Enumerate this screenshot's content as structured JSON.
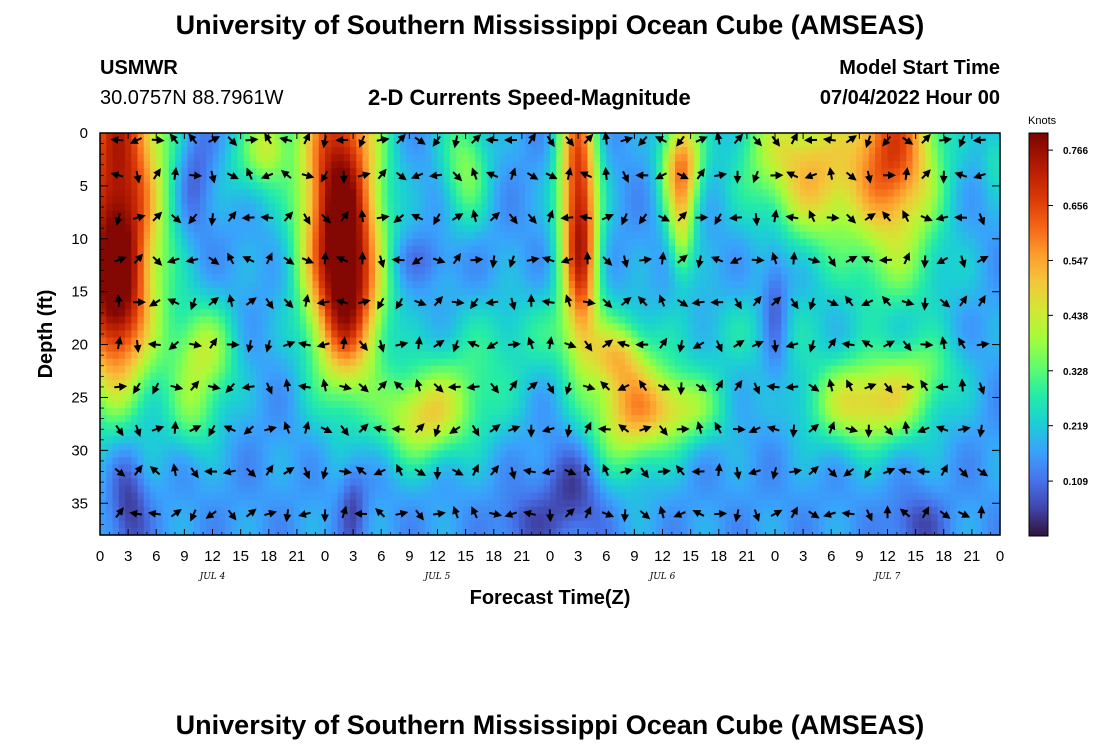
{
  "header": {
    "title": "University of Southern Mississippi Ocean Cube (AMSEAS)",
    "station": "USMWR",
    "location": "30.0757N  88.7961W",
    "subtitle": "2-D Currents Speed-Magnitude",
    "model_start_label": "Model Start Time",
    "model_start_value": "07/04/2022 Hour 00"
  },
  "footer": {
    "title": "University of Southern Mississippi Ocean Cube (AMSEAS)"
  },
  "chart_data": {
    "type": "heatmap",
    "title": "2-D Currents Speed-Magnitude",
    "xlabel": "Forecast Time(Z)",
    "ylabel": "Depth (ft)",
    "x_ticks": [
      "0",
      "3",
      "6",
      "9",
      "12",
      "15",
      "18",
      "21",
      "0",
      "3",
      "6",
      "9",
      "12",
      "15",
      "18",
      "21",
      "0",
      "3",
      "6",
      "9",
      "12",
      "15",
      "18",
      "21",
      "0",
      "3",
      "6",
      "9",
      "12",
      "15",
      "18",
      "21",
      "0"
    ],
    "xlim_hours": [
      0,
      96
    ],
    "day_labels": [
      {
        "label": "JUL 4",
        "hour": 12
      },
      {
        "label": "JUL 5",
        "hour": 36
      },
      {
        "label": "JUL 6",
        "hour": 60
      },
      {
        "label": "JUL 7",
        "hour": 84
      }
    ],
    "y_ticks": [
      0,
      5,
      10,
      15,
      20,
      25,
      30,
      35
    ],
    "ylim_ft": [
      0,
      38
    ],
    "colorbar": {
      "unit": "Knots",
      "range": [
        0,
        0.8
      ],
      "ticks": [
        "0.766",
        "0.656",
        "0.547",
        "0.438",
        "0.328",
        "0.219",
        "0.109"
      ],
      "tick_values": [
        0.766,
        0.656,
        0.547,
        0.438,
        0.328,
        0.219,
        0.109
      ]
    },
    "speed_blobs": [
      {
        "t": 2,
        "d": 3,
        "st": 3.5,
        "sd": 13,
        "a": 0.55
      },
      {
        "t": 1.5,
        "d": 16,
        "st": 2.5,
        "sd": 6,
        "a": 0.35
      },
      {
        "t": 25.5,
        "d": 5,
        "st": 3,
        "sd": 10,
        "a": 0.6
      },
      {
        "t": 26.5,
        "d": 16,
        "st": 2.5,
        "sd": 6,
        "a": 0.35
      },
      {
        "t": 11,
        "d": 21,
        "st": 2.5,
        "sd": 3.5,
        "a": 0.25
      },
      {
        "t": 10,
        "d": 27,
        "st": 2,
        "sd": 2.5,
        "a": 0.12
      },
      {
        "t": 18,
        "d": 1,
        "st": 1.5,
        "sd": 2.5,
        "a": 0.22
      },
      {
        "t": 15.5,
        "d": 3,
        "st": 2,
        "sd": 3,
        "a": 0.1
      },
      {
        "t": 34,
        "d": 27,
        "st": 3,
        "sd": 3,
        "a": 0.25
      },
      {
        "t": 39,
        "d": 3,
        "st": 1.8,
        "sd": 4,
        "a": 0.2
      },
      {
        "t": 38.5,
        "d": 25,
        "st": 4,
        "sd": 3.5,
        "a": 0.15
      },
      {
        "t": 51,
        "d": 5,
        "st": 1.5,
        "sd": 9,
        "a": 0.5
      },
      {
        "t": 51.5,
        "d": 13,
        "st": 1.2,
        "sd": 5,
        "a": 0.2
      },
      {
        "t": 56,
        "d": 26,
        "st": 3,
        "sd": 4.5,
        "a": 0.3
      },
      {
        "t": 61.5,
        "d": 26,
        "st": 3.5,
        "sd": 2.5,
        "a": 0.25
      },
      {
        "t": 55,
        "d": 21,
        "st": 2,
        "sd": 2,
        "a": 0.15
      },
      {
        "t": 62,
        "d": 3,
        "st": 1.5,
        "sd": 3.5,
        "a": 0.42
      },
      {
        "t": 62,
        "d": 10,
        "st": 1,
        "sd": 3,
        "a": 0.2
      },
      {
        "t": 73.5,
        "d": 2,
        "st": 4,
        "sd": 5,
        "a": 0.28
      },
      {
        "t": 77,
        "d": 6,
        "st": 2.5,
        "sd": 4,
        "a": 0.15
      },
      {
        "t": 84.5,
        "d": 2,
        "st": 3.5,
        "sd": 7,
        "a": 0.5
      },
      {
        "t": 82,
        "d": 25.5,
        "st": 4.5,
        "sd": 3,
        "a": 0.33
      },
      {
        "t": 88,
        "d": 22,
        "st": 3,
        "sd": 2.5,
        "a": 0.12
      },
      {
        "t": 95.5,
        "d": 2,
        "st": 1,
        "sd": 2.5,
        "a": 0.1
      },
      {
        "t": 47,
        "d": 19,
        "st": 7,
        "sd": 3,
        "a": 0.1
      },
      {
        "t": 70,
        "d": 19,
        "st": 6,
        "sd": 3,
        "a": 0.08
      },
      {
        "t": 85,
        "d": 14,
        "st": 6,
        "sd": 3,
        "a": 0.06
      }
    ],
    "low_blobs": [
      {
        "t": 10,
        "d": 4,
        "st": 1.5,
        "sd": 4,
        "a": 0.1
      },
      {
        "t": 3,
        "d": 35,
        "st": 1.5,
        "sd": 4,
        "a": 0.14
      },
      {
        "t": 27,
        "d": 35,
        "st": 1,
        "sd": 3,
        "a": 0.1
      },
      {
        "t": 50.5,
        "d": 34,
        "st": 2.5,
        "sd": 3.5,
        "a": 0.12
      },
      {
        "t": 72,
        "d": 17,
        "st": 1,
        "sd": 4.5,
        "a": 0.12
      },
      {
        "t": 87,
        "d": 37,
        "st": 2,
        "sd": 2,
        "a": 0.1
      },
      {
        "t": 45,
        "d": 37,
        "st": 2,
        "sd": 2,
        "a": 0.08
      },
      {
        "t": 34,
        "d": 12,
        "st": 3,
        "sd": 1.5,
        "a": 0.05
      }
    ],
    "base_speed": 0.16
  }
}
